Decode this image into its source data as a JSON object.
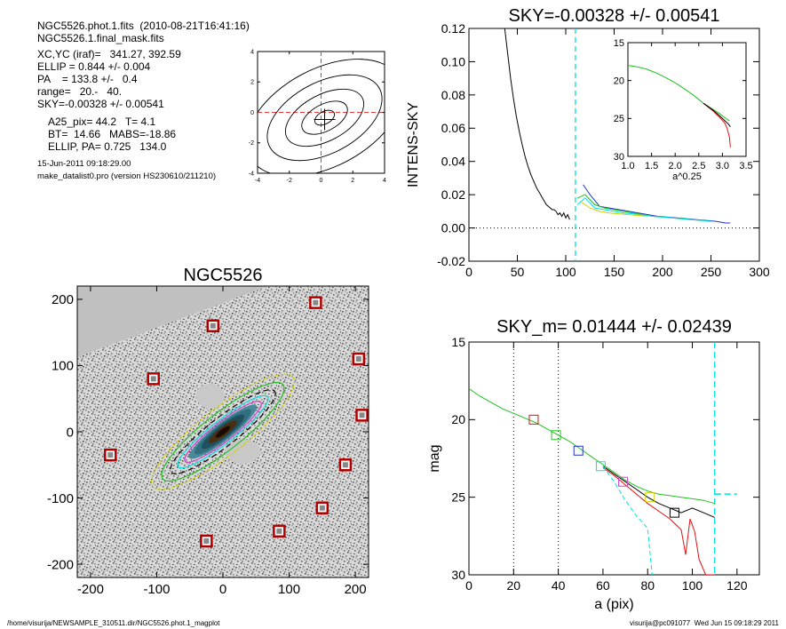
{
  "info": {
    "lines1": [
      "NGC5526.phot.1.fits  (2010-08-21T16:41:16)",
      "NGC5526.1.final_mask.fits"
    ],
    "lines2": [
      "XC,YC (iraf)=   341.27, 392.59",
      "ELLIP = 0.844 +/- 0.004",
      "PA    = 133.8 +/-   0.4",
      "range=   20.-   40.",
      "SKY=-0.00328 +/- 0.00541"
    ],
    "lines3": [
      "A25_pix= 44.2   T= 4.1",
      "BT=  14.66   MABS=-18.86",
      "ELLIP, PA= 0.725   134.0"
    ],
    "date": "15-Jun-2011 09:18:29.00",
    "program": "make_datalist0.pro (version HS230610/211210)"
  },
  "footer": {
    "path": "/home/visurija/NEWSAMPLE_310511.dir/NGC5526.phot.1_magplot",
    "stamp": "visurija@pc091077  Wed Jun 15 09:18:29 2011"
  },
  "colors": {
    "cyan": "#00e0e0",
    "red": "#e01010",
    "green": "#20c020",
    "blue": "#2030c0",
    "magenta": "#d040d0",
    "yellow": "#d0d000",
    "frame": "#b00000"
  },
  "chart_data": [
    {
      "id": "contour",
      "type": "contour",
      "xlim": [
        -4,
        4
      ],
      "ylim": [
        -4,
        4
      ],
      "xticks": [
        -4,
        -2,
        0,
        2,
        4
      ],
      "yticks": [
        -4,
        -2,
        0,
        2,
        4
      ],
      "crosshair": [
        0,
        0
      ]
    },
    {
      "id": "sky",
      "type": "line",
      "title": "SKY=-0.00328 +/- 0.00541",
      "xlabel": "",
      "ylabel": "INTENS-SKY",
      "xlim": [
        0,
        300
      ],
      "ylim": [
        -0.02,
        0.12
      ],
      "xticks": [
        0,
        50,
        100,
        150,
        200,
        250,
        300
      ],
      "yticks": [
        -0.02,
        0.0,
        0.02,
        0.04,
        0.06,
        0.08,
        0.1,
        0.12
      ],
      "ytick_labels": [
        "-0.02",
        "0.00",
        "0.02",
        "0.04",
        "0.06",
        "0.08",
        "0.10",
        "0.12"
      ],
      "vline": 110,
      "series": [
        {
          "color": "black",
          "x": [
            37,
            40,
            43,
            46,
            49,
            52,
            55,
            58,
            61,
            64,
            67,
            70,
            73,
            76,
            78,
            80,
            82,
            84,
            86,
            88,
            90,
            92,
            94,
            96,
            98,
            100,
            102,
            104
          ],
          "y": [
            0.12,
            0.105,
            0.09,
            0.078,
            0.067,
            0.058,
            0.05,
            0.043,
            0.037,
            0.032,
            0.028,
            0.024,
            0.021,
            0.018,
            0.016,
            0.014,
            0.013,
            0.012,
            0.011,
            0.011,
            0.01,
            0.008,
            0.009,
            0.007,
            0.009,
            0.006,
            0.008,
            0.005
          ]
        },
        {
          "color": "blue",
          "x": [
            118,
            125,
            135,
            145,
            155,
            165,
            175,
            185,
            195,
            205,
            215,
            225,
            235,
            245,
            255,
            265,
            270
          ],
          "y": [
            0.026,
            0.02,
            0.013,
            0.012,
            0.011,
            0.01,
            0.009,
            0.008,
            0.007,
            0.0065,
            0.006,
            0.0055,
            0.005,
            0.0045,
            0.004,
            0.003,
            0.003
          ]
        },
        {
          "color": "green",
          "x": [
            112,
            120,
            130,
            140,
            150,
            160,
            170,
            180,
            190,
            200,
            210,
            220,
            230,
            240
          ],
          "y": [
            0.018,
            0.02,
            0.014,
            0.012,
            0.011,
            0.01,
            0.009,
            0.008,
            0.007,
            0.0065,
            0.006,
            0.0055,
            0.005,
            0.0045
          ]
        },
        {
          "color": "cyan",
          "x": [
            112,
            120,
            130,
            140,
            150,
            160,
            170,
            180,
            190,
            200,
            210,
            220,
            230,
            240,
            250
          ],
          "y": [
            0.014,
            0.018,
            0.012,
            0.011,
            0.01,
            0.009,
            0.0085,
            0.0078,
            0.007,
            0.0065,
            0.006,
            0.0055,
            0.005,
            0.0045,
            0.004
          ]
        },
        {
          "color": "yellow",
          "x": [
            115,
            125,
            135,
            145,
            155,
            165,
            175,
            185
          ],
          "y": [
            0.016,
            0.012,
            0.01,
            0.009,
            0.0085,
            0.008,
            0.0075,
            0.007
          ]
        }
      ],
      "inset": {
        "xlabel": "a^0.25",
        "xlim": [
          1.0,
          3.5
        ],
        "ylim": [
          15,
          30
        ],
        "xticks": [
          1.0,
          1.5,
          2.0,
          2.5,
          3.0,
          3.5
        ],
        "xtick_labels": [
          "1.0",
          "1.5",
          "2.0",
          "2.5",
          "3.0",
          "3.5"
        ],
        "yticks": [
          15,
          20,
          25,
          30
        ],
        "series": [
          {
            "color": "green",
            "x": [
              1.0,
              1.2,
              1.4,
              1.6,
              1.8,
              2.0,
              2.2,
              2.4,
              2.6,
              2.8,
              2.95,
              3.05,
              3.15
            ],
            "y": [
              18.0,
              18.2,
              18.5,
              19.0,
              19.6,
              20.3,
              21.1,
              22.0,
              23.0,
              23.8,
              24.4,
              24.9,
              25.3
            ]
          },
          {
            "color": "red",
            "x": [
              2.6,
              2.8,
              2.95,
              3.05,
              3.1,
              3.15,
              3.17
            ],
            "y": [
              23.0,
              24.0,
              24.9,
              25.6,
              26.3,
              27.5,
              28.8
            ]
          },
          {
            "color": "black",
            "x": [
              2.6,
              2.8,
              2.95,
              3.05,
              3.12,
              3.17
            ],
            "y": [
              23.0,
              23.9,
              24.7,
              25.3,
              25.7,
              26.1
            ]
          }
        ]
      }
    },
    {
      "id": "image",
      "type": "image",
      "title": "NGC5526",
      "xlim": [
        -220,
        220
      ],
      "ylim": [
        -220,
        220
      ],
      "xticks": [
        -200,
        -100,
        0,
        100,
        200
      ],
      "yticks": [
        -200,
        -100,
        0,
        100,
        200
      ],
      "stars": [
        [
          -15,
          160
        ],
        [
          140,
          195
        ],
        [
          -105,
          80
        ],
        [
          205,
          110
        ],
        [
          210,
          25
        ],
        [
          -170,
          -35
        ],
        [
          185,
          -50
        ],
        [
          150,
          -115
        ],
        [
          85,
          -150
        ],
        [
          -25,
          -165
        ]
      ],
      "galaxy_center": [
        0,
        0
      ],
      "pa": 134,
      "ellip": 0.84
    },
    {
      "id": "mag",
      "type": "line",
      "title": "SKY_m=  0.01444 +/- 0.02439",
      "xlabel": "a (pix)",
      "ylabel": "mag",
      "xlim": [
        0,
        130
      ],
      "ylim": [
        15,
        30
      ],
      "y_inverted": true,
      "xticks": [
        0,
        20,
        40,
        60,
        80,
        100,
        120
      ],
      "yticks": [
        15,
        20,
        25,
        30
      ],
      "vlines_dotted": [
        20,
        40
      ],
      "vline_dashed": 110,
      "series": [
        {
          "color": "green",
          "x": [
            0,
            5,
            10,
            15,
            20,
            25,
            30,
            35,
            40,
            45,
            50,
            55,
            60,
            65,
            70,
            75,
            80,
            85,
            90,
            95,
            100,
            105,
            110
          ],
          "y": [
            18.0,
            18.5,
            18.9,
            19.3,
            19.6,
            19.9,
            20.2,
            20.6,
            21.0,
            21.4,
            21.9,
            22.4,
            22.9,
            23.4,
            23.9,
            24.3,
            24.6,
            24.8,
            24.9,
            25.0,
            25.1,
            25.2,
            25.4
          ]
        },
        {
          "color": "black",
          "x": [
            60,
            65,
            70,
            75,
            80,
            85,
            90,
            95,
            100,
            105,
            110
          ],
          "y": [
            23.0,
            23.5,
            24.0,
            24.5,
            25.0,
            25.4,
            25.7,
            26.0,
            25.7,
            26.0,
            26.3
          ]
        },
        {
          "color": "red",
          "x": [
            60,
            65,
            70,
            75,
            80,
            85,
            90,
            95,
            97,
            99,
            101,
            103,
            106,
            108,
            110
          ],
          "y": [
            23.1,
            23.6,
            24.2,
            24.8,
            25.4,
            25.9,
            26.4,
            27.1,
            28.7,
            26.4,
            27.2,
            29.0,
            30.0,
            30.0,
            30.0
          ]
        },
        {
          "color": "cyan",
          "x": [
            60,
            65,
            70,
            75,
            80,
            82
          ],
          "dashed": true,
          "y": [
            23.0,
            24.0,
            25.2,
            26.2,
            27.0,
            30.0
          ]
        }
      ],
      "markers": [
        {
          "x": 29,
          "y": 20.0,
          "color": "red"
        },
        {
          "x": 39,
          "y": 21.0,
          "color": "green"
        },
        {
          "x": 49,
          "y": 22.0,
          "color": "blue"
        },
        {
          "x": 59,
          "y": 23.0,
          "color": "cyan"
        },
        {
          "x": 69,
          "y": 24.0,
          "color": "magenta"
        },
        {
          "x": 81,
          "y": 25.0,
          "color": "yellow"
        },
        {
          "x": 92,
          "y": 26.0,
          "color": "black"
        }
      ],
      "sky_level": {
        "x": [
          110,
          120
        ],
        "y": 24.8
      }
    }
  ]
}
